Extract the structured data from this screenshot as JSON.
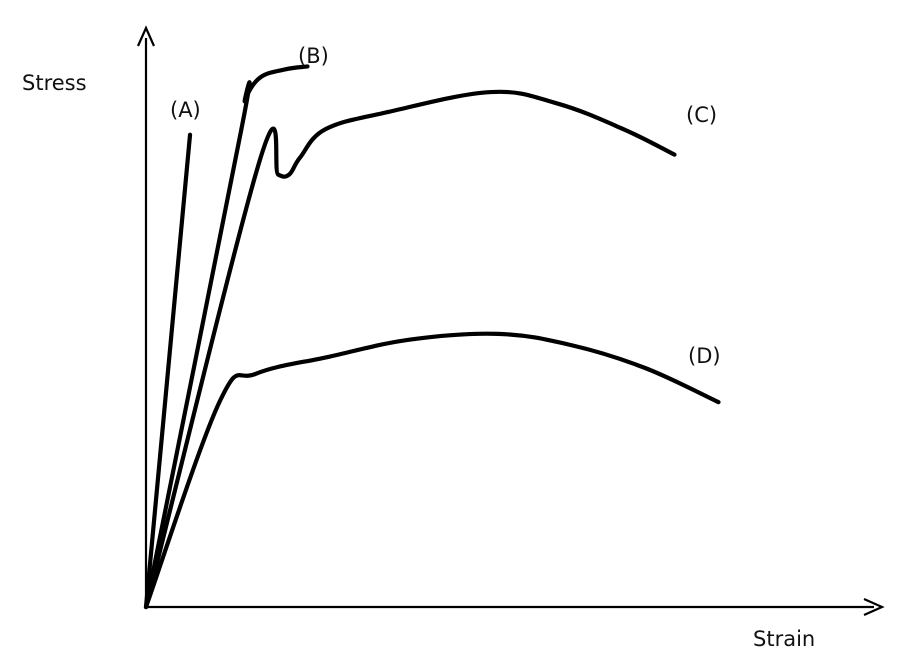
{
  "chart_data": {
    "type": "line",
    "title": "",
    "xlabel": "Strain",
    "ylabel": "Stress",
    "grid": false,
    "legend": "none",
    "colors": {
      "curve": "#000000",
      "axis": "#000000",
      "background": "#ffffff"
    },
    "series": [
      {
        "name": "(A)",
        "points": [
          [
            0,
            0
          ],
          [
            0.06,
            0.83
          ]
        ]
      },
      {
        "name": "(B)",
        "points": [
          [
            0,
            0
          ],
          [
            0.13,
            0.84
          ],
          [
            0.135,
            0.89
          ],
          [
            0.155,
            0.93
          ],
          [
            0.19,
            0.945
          ],
          [
            0.22,
            0.95
          ]
        ]
      },
      {
        "name": "(C)",
        "points": [
          [
            0,
            0
          ],
          [
            0.155,
            0.785
          ],
          [
            0.18,
            0.76
          ],
          [
            0.195,
            0.76
          ],
          [
            0.21,
            0.79
          ],
          [
            0.245,
            0.84
          ],
          [
            0.33,
            0.87
          ],
          [
            0.47,
            0.905
          ],
          [
            0.56,
            0.885
          ],
          [
            0.65,
            0.84
          ],
          [
            0.72,
            0.795
          ]
        ]
      },
      {
        "name": "(D)",
        "points": [
          [
            0,
            0
          ],
          [
            0.1,
            0.36
          ],
          [
            0.15,
            0.41
          ],
          [
            0.25,
            0.44
          ],
          [
            0.36,
            0.47
          ],
          [
            0.48,
            0.48
          ],
          [
            0.58,
            0.46
          ],
          [
            0.68,
            0.42
          ],
          [
            0.78,
            0.36
          ]
        ]
      }
    ],
    "xlim": [
      0,
      1
    ],
    "ylim": [
      0,
      1
    ]
  }
}
